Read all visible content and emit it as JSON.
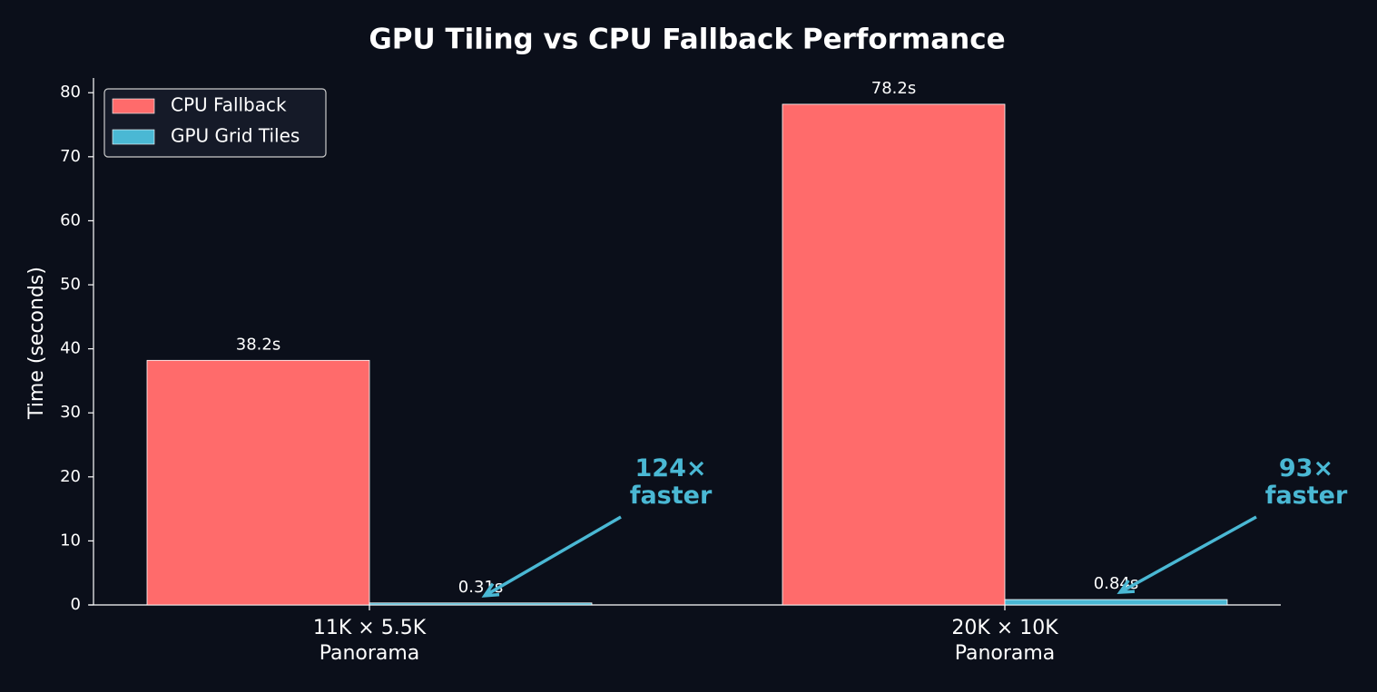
{
  "chart_data": {
    "type": "bar",
    "title": "GPU Tiling vs CPU Fallback Performance",
    "y_label": "Time (seconds)",
    "categories": [
      "11K × 5.5K\nPanorama",
      "20K × 10K\nPanorama"
    ],
    "series": [
      {
        "name": "CPU Fallback",
        "color": "#ff6b6b",
        "values": [
          38.2,
          78.2
        ],
        "value_labels": [
          "38.2s",
          "78.2s"
        ]
      },
      {
        "name": "GPU Grid Tiles",
        "color": "#4ab8d4",
        "values": [
          0.31,
          0.84
        ],
        "value_labels": [
          "0.31s",
          "0.84s"
        ]
      }
    ],
    "annotations": [
      "124×\nfaster",
      "93×\nfaster"
    ],
    "annotation_color": "#4ab8d4",
    "ylim": [
      0,
      82.3
    ],
    "yticks": [
      0,
      10,
      20,
      30,
      40,
      50,
      60,
      70,
      80
    ],
    "grid": false,
    "legend": "upper-left"
  }
}
